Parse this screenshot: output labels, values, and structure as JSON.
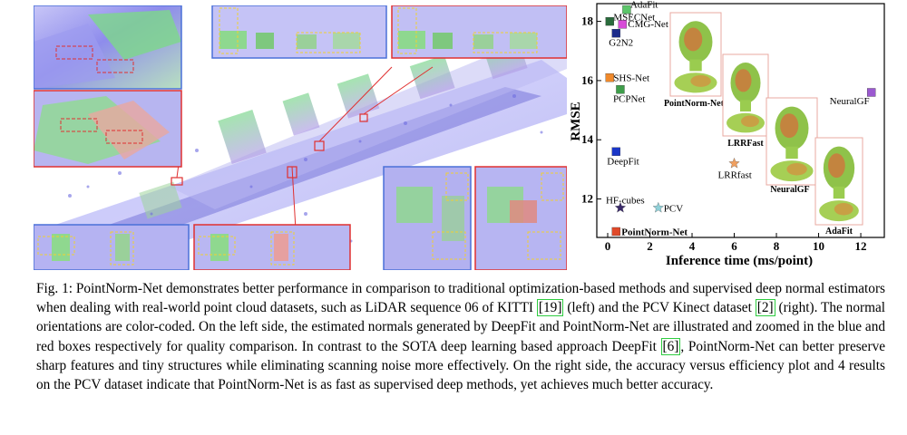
{
  "figure": {
    "left_view": {
      "description_hidden": true
    },
    "plot": {
      "ylabel": "RMSE",
      "xlabel": "Inference time (ms/point)",
      "x_ticks": [
        "0",
        "2",
        "4",
        "6",
        "8",
        "10",
        "12"
      ],
      "y_ticks": [
        "12",
        "14",
        "16",
        "18"
      ],
      "methods": [
        {
          "label": "AdaFit",
          "x": 0.9,
          "y": 18.4,
          "color": "#5cc66a",
          "marker": "square"
        },
        {
          "label": "MSECNet",
          "x": 0.1,
          "y": 18.0,
          "color": "#2a6b3c",
          "marker": "square"
        },
        {
          "label": "CMG-Net",
          "x": 0.7,
          "y": 17.9,
          "color": "#d84bd8",
          "marker": "square"
        },
        {
          "label": "G2N2",
          "x": 0.4,
          "y": 17.6,
          "color": "#1b2b8a",
          "marker": "square"
        },
        {
          "label": "SHS-Net",
          "x": 0.1,
          "y": 16.1,
          "color": "#f0892a",
          "marker": "square"
        },
        {
          "label": "PCPNet",
          "x": 0.6,
          "y": 15.7,
          "color": "#3e9e4a",
          "marker": "square"
        },
        {
          "label": "NeuralGF",
          "x": 12.5,
          "y": 15.6,
          "color": "#9b59d0",
          "marker": "square"
        },
        {
          "label": "DeepFit",
          "x": 0.4,
          "y": 13.6,
          "color": "#1a36c8",
          "marker": "square"
        },
        {
          "label": "LRRfast",
          "x": 6.0,
          "y": 13.2,
          "color": "#f0a060",
          "marker": "star"
        },
        {
          "label": "HF-cubes",
          "x": 0.6,
          "y": 11.7,
          "color": "#3a2a6a",
          "marker": "star"
        },
        {
          "label": "PCV",
          "x": 2.4,
          "y": 11.7,
          "color": "#8fd0d8",
          "marker": "star"
        },
        {
          "label": "PointNorm-Net",
          "x": 0.4,
          "y": 10.9,
          "color": "#e04a2a",
          "marker": "square"
        }
      ],
      "thumbnails": [
        {
          "label": "PointNorm-Net"
        },
        {
          "label": "LRRFast"
        },
        {
          "label": "NeuralGF"
        },
        {
          "label": "AdaFit"
        }
      ]
    }
  },
  "caption": {
    "part1": "Fig. 1: PointNorm-Net demonstrates better performance in comparison to traditional optimization-based methods and supervised deep normal estimators when dealing with real-world point cloud datasets, such as LiDAR sequence 06 of KITTI ",
    "cite1": "[19]",
    "part2": " (left) and the PCV Kinect dataset ",
    "cite2": "[2]",
    "part3": " (right). The normal orientations are color-coded. On the left side, the estimated normals generated by DeepFit and PointNorm-Net are illustrated and zoomed in the blue and red boxes respectively for quality comparison. In contrast to the SOTA deep learning based approach DeepFit ",
    "cite3": "[6]",
    "part4": ", PointNorm-Net can better preserve sharp features and tiny structures while eliminating scanning noise more effectively. On the right side, the accuracy versus efficiency plot and 4 results on the PCV dataset indicate that PointNorm-Net is as fast as supervised deep methods, yet achieves much better accuracy."
  }
}
